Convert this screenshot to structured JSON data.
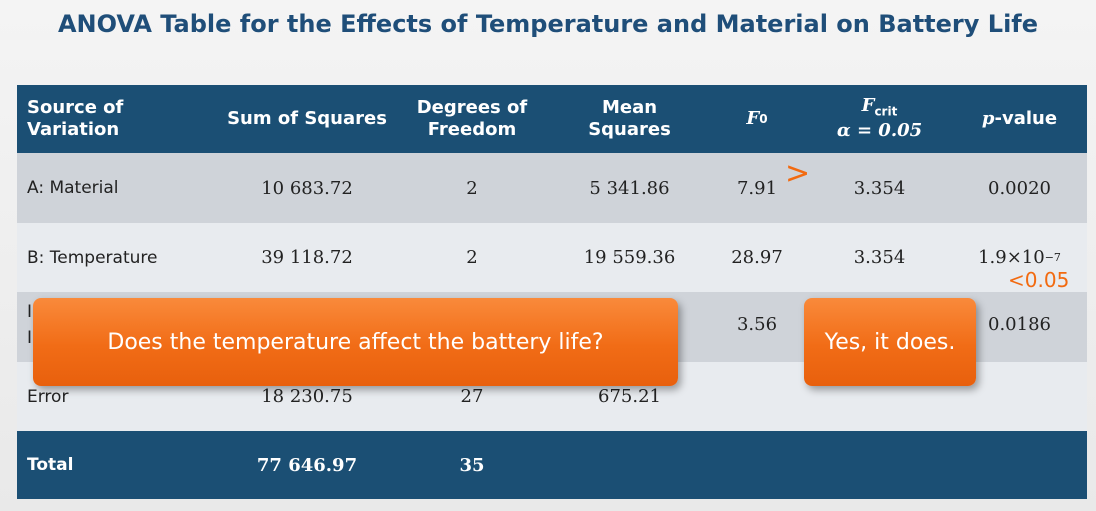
{
  "title": "ANOVA Table for the Effects of Temperature and Material on Battery Life",
  "headers": {
    "source": "Source of Variation",
    "ss": "Sum of Squares",
    "df_1": "Degrees of",
    "df_2": "Freedom",
    "ms_1": "Mean",
    "ms_2": "Squares",
    "f0_main": "F",
    "f0_sub": "0",
    "fcrit_main": "F",
    "fcrit_sub": "crit",
    "fcrit_alpha": "α = 0.05",
    "p_main": "p",
    "p_rest": "-value"
  },
  "rows": [
    {
      "source": "A: Material",
      "ss": "10 683.72",
      "df": "2",
      "ms": "5 341.86",
      "f0": "7.91",
      "fcrit": "3.354",
      "p": "0.0020"
    },
    {
      "source": "B: Temperature",
      "ss": "39 118.72",
      "df": "2",
      "ms": "19 559.36",
      "f0": "28.97",
      "fcrit": "3.354",
      "p_base": "1.9×10",
      "p_exp": "−7"
    },
    {
      "source_hidden_1": "I",
      "source_hidden_2": "I",
      "f0": "3.56",
      "p": "0.0186"
    },
    {
      "source": "Error",
      "ss": "18 230.75",
      "df": "27",
      "ms": "675.21"
    }
  ],
  "total": {
    "source": "Total",
    "ss": "77 646.97",
    "df": "35"
  },
  "annotations": {
    "greater_than": ">",
    "p_compare": "<0.05"
  },
  "callouts": {
    "question": "Does the temperature affect the battery life?",
    "answer": "Yes, it does."
  },
  "colors": {
    "header_bg": "#1b4f74",
    "title": "#1f4e79",
    "accent_orange": "#f26a10"
  }
}
